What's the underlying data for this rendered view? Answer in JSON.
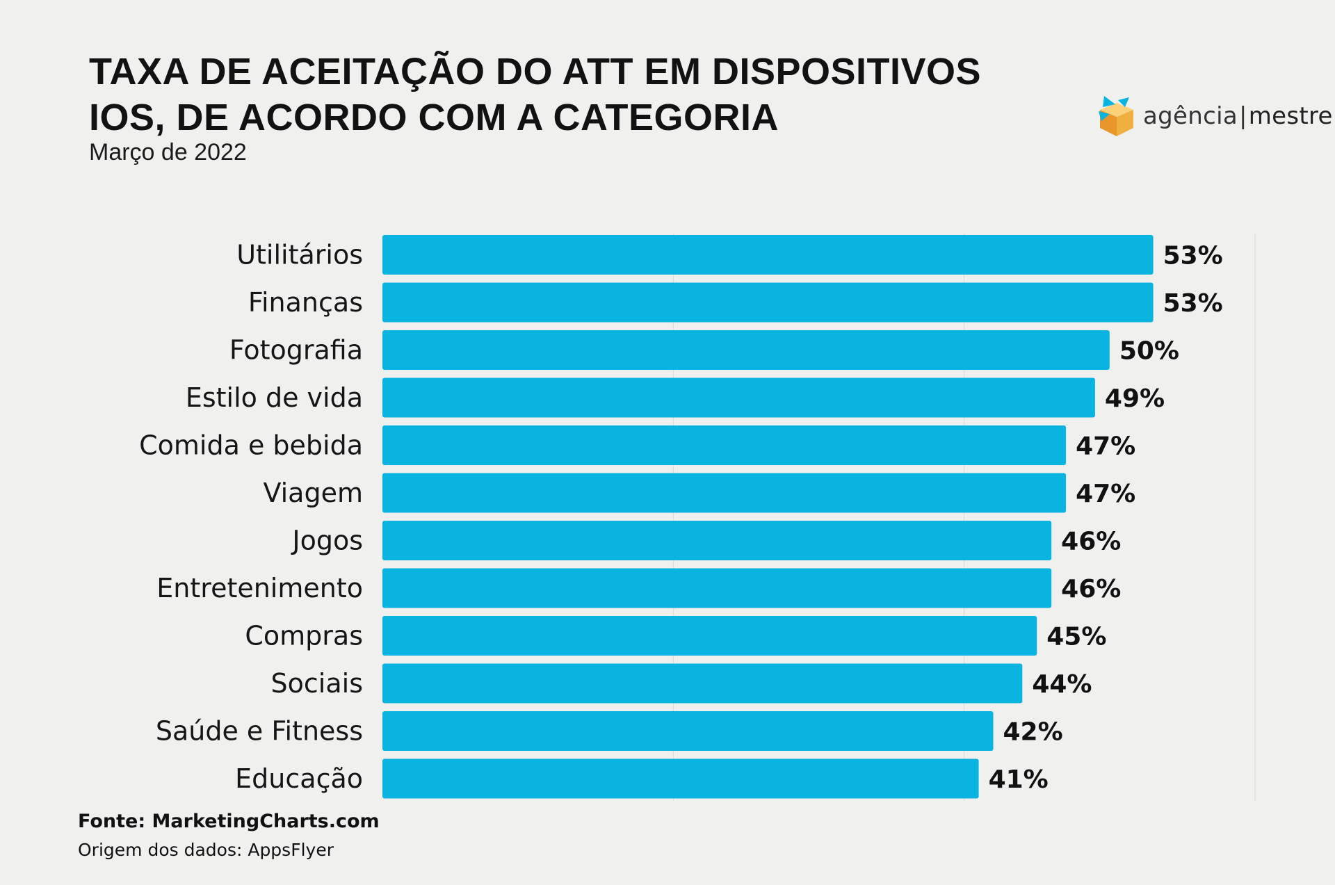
{
  "header": {
    "title_line1": "TAXA DE ACEITAÇÃO DO ATT EM DISPOSITIVOS",
    "title_line2": "IOS, DE ACORDO COM A CATEGORIA",
    "subtitle": "Março de 2022"
  },
  "logo": {
    "name_left": "agência",
    "separator": "|",
    "name_right": "mestre",
    "icon": "star-cube-logo-icon"
  },
  "footer": {
    "source": "Fonte: MarketingCharts.com",
    "origin": "Origem dos dados: AppsFlyer"
  },
  "colors": {
    "bar": "#0ab4e0",
    "background": "#f0f0ef",
    "grid": "#d9d9d9"
  },
  "chart_data": {
    "type": "bar",
    "orientation": "horizontal",
    "categories": [
      "Utilitários",
      "Finanças",
      "Fotografia",
      "Estilo de vida",
      "Comida e bebida",
      "Viagem",
      "Jogos",
      "Entretenimento",
      "Compras",
      "Sociais",
      "Saúde e Fitness",
      "Educação"
    ],
    "values": [
      53,
      53,
      50,
      49,
      47,
      47,
      46,
      46,
      45,
      44,
      42,
      41
    ],
    "value_labels": [
      "53%",
      "53%",
      "50%",
      "49%",
      "47%",
      "47%",
      "46%",
      "46%",
      "45%",
      "44%",
      "42%",
      "41%"
    ],
    "xlim": [
      0,
      60
    ],
    "grid": true,
    "legend": "none"
  }
}
